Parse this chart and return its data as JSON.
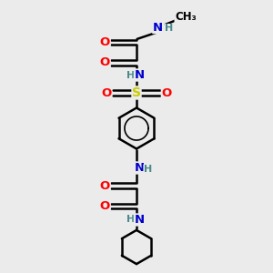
{
  "bg_color": "#ebebeb",
  "bond_color": "#000000",
  "bond_width": 1.8,
  "atom_colors": {
    "O": "#ff0000",
    "N": "#0000cc",
    "S": "#cccc00",
    "H": "#4a8a8a"
  },
  "figsize": [
    3.0,
    3.0
  ],
  "dpi": 100
}
